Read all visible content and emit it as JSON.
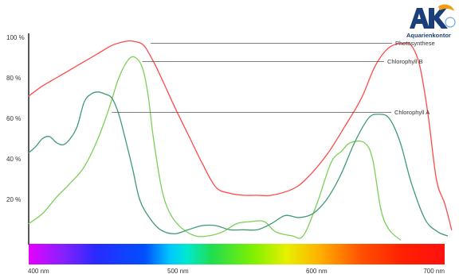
{
  "logo": {
    "text": "Aquarienkontor",
    "color": "#1b3f7a",
    "accent": "#f39c12"
  },
  "chart_data": {
    "type": "line",
    "xlabel": "",
    "ylabel": "",
    "xlim": [
      400,
      700
    ],
    "ylim": [
      0,
      100
    ],
    "x_ticks": [
      {
        "value": 400,
        "label": "400 nm"
      },
      {
        "value": 500,
        "label": "500 nm"
      },
      {
        "value": 600,
        "label": "600 nm"
      },
      {
        "value": 700,
        "label": "700 nm"
      }
    ],
    "y_ticks": [
      {
        "value": 100,
        "label": "100 %"
      },
      {
        "value": 80,
        "label": "80 %"
      },
      {
        "value": 60,
        "label": "60 %"
      },
      {
        "value": 40,
        "label": "40 %"
      },
      {
        "value": 20,
        "label": "20 %"
      }
    ],
    "spectrum_bar": true,
    "series": [
      {
        "name": "Photosynthese",
        "color": "#ff4a4a",
        "points": [
          [
            400,
            71
          ],
          [
            410,
            76
          ],
          [
            420,
            80
          ],
          [
            430,
            84
          ],
          [
            440,
            88
          ],
          [
            450,
            92
          ],
          [
            460,
            96
          ],
          [
            470,
            98
          ],
          [
            476,
            98
          ],
          [
            483,
            96
          ],
          [
            490,
            88
          ],
          [
            497,
            78
          ],
          [
            505,
            66
          ],
          [
            515,
            52
          ],
          [
            525,
            38
          ],
          [
            535,
            26
          ],
          [
            545,
            23
          ],
          [
            555,
            22
          ],
          [
            565,
            22
          ],
          [
            575,
            22
          ],
          [
            590,
            25
          ],
          [
            600,
            30
          ],
          [
            615,
            42
          ],
          [
            628,
            56
          ],
          [
            640,
            70
          ],
          [
            650,
            86
          ],
          [
            660,
            95
          ],
          [
            670,
            97
          ],
          [
            676,
            96
          ],
          [
            682,
            86
          ],
          [
            688,
            62
          ],
          [
            694,
            30
          ],
          [
            700,
            18
          ],
          [
            705,
            5
          ]
        ],
        "label_anchor": [
          488,
          97
        ]
      },
      {
        "name": "Chlorophyll B",
        "color": "#7ccf5a",
        "points": [
          [
            400,
            8
          ],
          [
            410,
            13
          ],
          [
            420,
            21
          ],
          [
            430,
            28
          ],
          [
            440,
            36
          ],
          [
            450,
            50
          ],
          [
            458,
            65
          ],
          [
            465,
            80
          ],
          [
            472,
            89
          ],
          [
            477,
            90
          ],
          [
            482,
            85
          ],
          [
            486,
            72
          ],
          [
            490,
            50
          ],
          [
            496,
            25
          ],
          [
            502,
            13
          ],
          [
            510,
            6
          ],
          [
            520,
            2
          ],
          [
            530,
            2
          ],
          [
            540,
            4
          ],
          [
            550,
            8
          ],
          [
            560,
            9
          ],
          [
            570,
            9
          ],
          [
            578,
            4
          ],
          [
            590,
            2
          ],
          [
            598,
            2
          ],
          [
            608,
            18
          ],
          [
            618,
            38
          ],
          [
            626,
            44
          ],
          [
            632,
            48
          ],
          [
            642,
            48
          ],
          [
            648,
            40
          ],
          [
            654,
            15
          ],
          [
            660,
            5
          ],
          [
            668,
            0
          ]
        ],
        "label_anchor": [
          482,
          88
        ]
      },
      {
        "name": "Chlorophyll A",
        "color": "#3f9a70",
        "points": [
          [
            400,
            43
          ],
          [
            405,
            46
          ],
          [
            410,
            50
          ],
          [
            415,
            51
          ],
          [
            420,
            48
          ],
          [
            425,
            47
          ],
          [
            430,
            50
          ],
          [
            435,
            56
          ],
          [
            440,
            68
          ],
          [
            445,
            72
          ],
          [
            450,
            73
          ],
          [
            455,
            72
          ],
          [
            460,
            70
          ],
          [
            465,
            62
          ],
          [
            470,
            49
          ],
          [
            475,
            35
          ],
          [
            480,
            20
          ],
          [
            487,
            11
          ],
          [
            495,
            5
          ],
          [
            505,
            3
          ],
          [
            515,
            5
          ],
          [
            525,
            7
          ],
          [
            535,
            7
          ],
          [
            545,
            5
          ],
          [
            555,
            5
          ],
          [
            565,
            5
          ],
          [
            575,
            8
          ],
          [
            585,
            12
          ],
          [
            595,
            11
          ],
          [
            605,
            13
          ],
          [
            615,
            20
          ],
          [
            625,
            32
          ],
          [
            635,
            48
          ],
          [
            645,
            60
          ],
          [
            652,
            62
          ],
          [
            660,
            60
          ],
          [
            668,
            48
          ],
          [
            676,
            28
          ],
          [
            686,
            10
          ],
          [
            695,
            4
          ],
          [
            702,
            2
          ]
        ],
        "label_anchor": [
          460,
          63
        ]
      }
    ],
    "labels": [
      {
        "series": 0,
        "text": "Photosynthese",
        "tx": 496,
        "ty": 57
      },
      {
        "series": 1,
        "text": "Chlorophyll B",
        "tx": 486,
        "ty": 99
      },
      {
        "series": 2,
        "text": "Chlorophyll A",
        "tx": 495,
        "ty": 138
      }
    ]
  }
}
